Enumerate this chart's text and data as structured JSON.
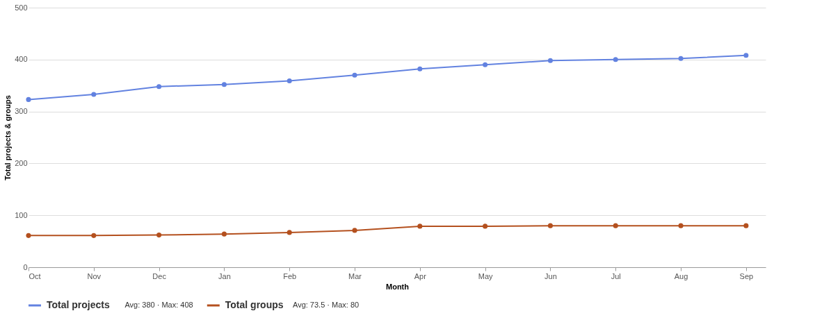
{
  "chart_data": {
    "type": "line",
    "xlabel": "Month",
    "ylabel": "Total projects & groups",
    "categories": [
      "Oct",
      "Nov",
      "Dec",
      "Jan",
      "Feb",
      "Mar",
      "Apr",
      "May",
      "Jun",
      "Jul",
      "Aug",
      "Sep"
    ],
    "series": [
      {
        "name": "Total projects",
        "color": "#6282e0",
        "values": [
          323,
          333,
          348,
          352,
          359,
          370,
          382,
          390,
          398,
          400,
          402,
          408
        ]
      },
      {
        "name": "Total groups",
        "color": "#b4501e",
        "values": [
          61,
          61,
          62,
          64,
          67,
          71,
          79,
          79,
          80,
          80,
          80,
          80
        ]
      }
    ],
    "annotations": [
      "Avg: 380 · Max: 408",
      "Avg: 73.5 · Max: 80"
    ],
    "ylim": [
      0,
      500
    ],
    "yticks": [
      0,
      100,
      200,
      300,
      400,
      500
    ],
    "grid": "y",
    "legend": "bottom",
    "marker": "circle",
    "line_style": "solid"
  }
}
